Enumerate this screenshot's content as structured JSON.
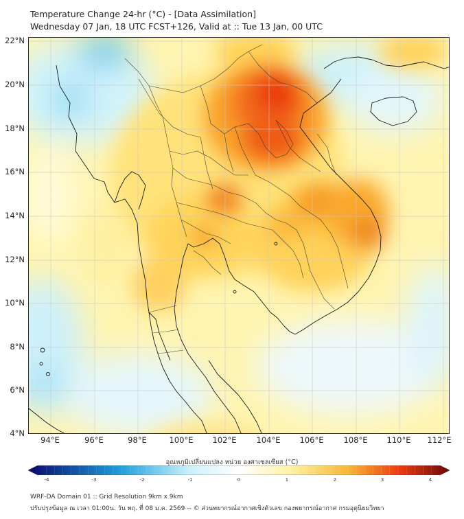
{
  "header": {
    "title": "Temperature Change 24-hr (°C) - [Data Assimilation]",
    "subtitle": "Wednesday 07 Jan, 18 UTC FCST+126, Valid at :: Tue 13 Jan, 00 UTC"
  },
  "map": {
    "lat_labels": [
      "22°N",
      "20°N",
      "18°N",
      "16°N",
      "14°N",
      "12°N",
      "10°N",
      "8°N",
      "6°N",
      "4°N"
    ],
    "lon_labels": [
      "94°E",
      "96°E",
      "98°E",
      "100°E",
      "102°E",
      "104°E",
      "106°E",
      "108°E",
      "110°E",
      "112°E"
    ],
    "lat_range": [
      4,
      22
    ],
    "lon_range": [
      93,
      112.3
    ]
  },
  "colorbar": {
    "label": "อุณหภูมิเปลี่ยนแปลง หน่วย องศาเซลเซียส (°C)",
    "ticks": [
      "-4",
      "-3",
      "-2",
      "-1",
      "0",
      "1",
      "2",
      "3",
      "4"
    ],
    "range": [
      -4,
      4
    ],
    "colors": {
      "cold_end": "#08086b",
      "cold_mid": "#1f9fdc",
      "cool": "#c9f0fb",
      "neutral": "#ffffff",
      "warm_light": "#fff2a8",
      "warm": "#f7b733",
      "hot": "#f03a10",
      "hot_end": "#6b0808"
    }
  },
  "footer": {
    "line1": "WRF-DA Domain 01 :: Grid Resolution 9km x 9km",
    "line2": "ปรับปรุงข้อมูล ณ เวลา 01:00น. วัน พฤ. ที่ 08 ม.ค. 2569 -- © ส่วนพยากรณ์อากาศเชิงตัวเลข กองพยากรณ์อากาศ กรมอุตุนิยมวิทยา"
  }
}
